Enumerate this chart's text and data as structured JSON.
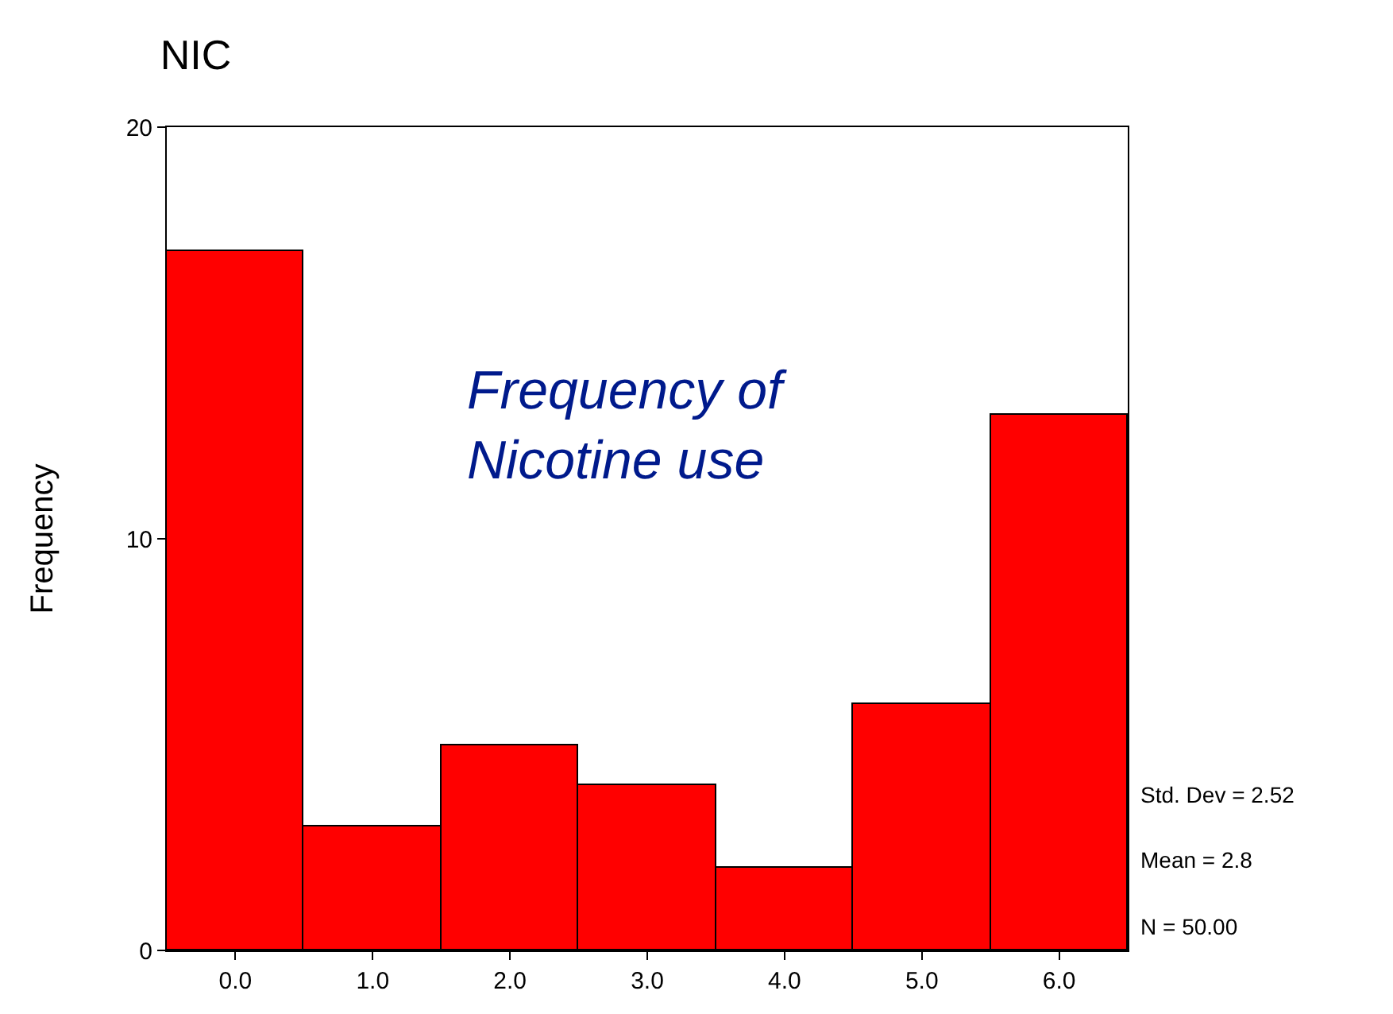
{
  "chart_data": {
    "type": "histogram",
    "title": "NIC",
    "ylabel": "Frequency",
    "bins": [
      -0.5,
      0.5,
      1.5,
      2.5,
      3.5,
      4.5,
      5.5,
      6.5
    ],
    "values": [
      17,
      3,
      5,
      4,
      2,
      6,
      13
    ],
    "color": "#ff0000",
    "xlim": [
      -0.5,
      6.5
    ],
    "xticks": [
      {
        "value": 0,
        "label": "0.0"
      },
      {
        "value": 1,
        "label": "1.0"
      },
      {
        "value": 2,
        "label": "2.0"
      },
      {
        "value": 3,
        "label": "3.0"
      },
      {
        "value": 4,
        "label": "4.0"
      },
      {
        "value": 5,
        "label": "5.0"
      },
      {
        "value": 6,
        "label": "6.0"
      }
    ],
    "ylim": [
      0,
      20
    ],
    "yticks": [
      0,
      10,
      20
    ],
    "annotations": [
      "Frequency of\nNicotine use",
      "Std. Dev = 2.52",
      "Mean = 2.8",
      "N = 50.00"
    ]
  }
}
